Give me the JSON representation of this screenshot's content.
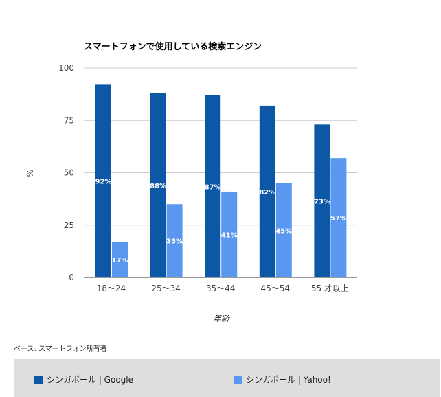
{
  "chart_data": {
    "type": "bar",
    "title": "スマートフォンで使用している検索エンジン",
    "xlabel": "年齢",
    "ylabel": "%",
    "ylim": [
      0,
      100
    ],
    "yticks": [
      0,
      25,
      50,
      75,
      100
    ],
    "categories": [
      "18〜24",
      "25〜34",
      "35〜44",
      "45〜54",
      "55 才以上"
    ],
    "series": [
      {
        "name": "シンガポール | Google",
        "color": "#0d58a6",
        "values": [
          92,
          88,
          87,
          82,
          73
        ],
        "labels": [
          "92%",
          "88%",
          "87%",
          "82%",
          "73%"
        ]
      },
      {
        "name": "シンガポール | Yahoo!",
        "color": "#5a98f0",
        "values": [
          17,
          35,
          41,
          45,
          57
        ],
        "labels": [
          "17%",
          "35%",
          "41%",
          "45%",
          "57%"
        ]
      }
    ],
    "grid": true,
    "legend_position": "bottom"
  },
  "note": "ベース: スマートフォン所有者"
}
